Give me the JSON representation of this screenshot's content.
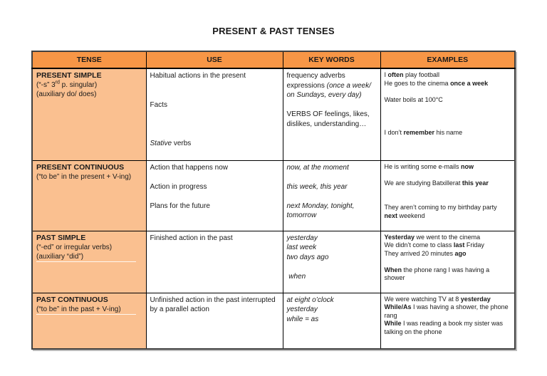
{
  "page": {
    "title": "PRESENT & PAST TENSES"
  },
  "table": {
    "headers": [
      "TENSE",
      "USE",
      "KEY WORDS",
      "EXAMPLES"
    ],
    "colors": {
      "header_bg": "#F79646",
      "tense_bg": "#FAC090",
      "grid_border": "#000000",
      "outer_border": "#404040"
    },
    "rows": [
      {
        "tense": [
          {
            "runs": [
              {
                "t": "PRESENT SIMPLE",
                "b": true
              }
            ]
          },
          {
            "runs": [
              {
                "t": "(“-s” 3"
              },
              {
                "t": "rd",
                "sup": true
              },
              {
                "t": " p. singular)"
              }
            ]
          },
          {
            "runs": [
              {
                "t": "(auxiliary do/ does)"
              }
            ]
          }
        ],
        "use": [
          {
            "runs": [
              {
                "t": "Habitual actions in the present"
              }
            ]
          },
          {
            "runs": []
          },
          {
            "runs": []
          },
          {
            "runs": [
              {
                "t": "Facts"
              }
            ]
          },
          {
            "runs": []
          },
          {
            "runs": []
          },
          {
            "runs": []
          },
          {
            "runs": [
              {
                "t": "Stative",
                "i": true
              },
              {
                "t": " verbs"
              }
            ]
          }
        ],
        "key_words": [
          {
            "runs": [
              {
                "t": "frequency adverbs expressions "
              },
              {
                "t": "(once a week/ on Sundays, every day)",
                "i": true
              }
            ]
          },
          {
            "runs": []
          },
          {
            "runs": [
              {
                "t": "VERBS OF feelings, likes, dislikes, understanding…"
              }
            ]
          }
        ],
        "examples": [
          {
            "runs": [
              {
                "t": "I "
              },
              {
                "t": "often",
                "b": true
              },
              {
                "t": " play football"
              }
            ]
          },
          {
            "runs": [
              {
                "t": "He goes to the cinema "
              },
              {
                "t": "once a week",
                "b": true
              }
            ]
          },
          {
            "runs": []
          },
          {
            "runs": [
              {
                "t": "Water boils at 100°C"
              }
            ]
          },
          {
            "runs": []
          },
          {
            "runs": []
          },
          {
            "runs": []
          },
          {
            "runs": [
              {
                "t": "I don’t "
              },
              {
                "t": "remember",
                "b": true
              },
              {
                "t": " his name"
              }
            ]
          }
        ]
      },
      {
        "tense": [
          {
            "runs": [
              {
                "t": "PRESENT CONTINUOUS",
                "b": true
              }
            ]
          },
          {
            "runs": [
              {
                "t": "(“to be” in the present + V-ing)"
              }
            ]
          }
        ],
        "use": [
          {
            "runs": [
              {
                "t": "Action that happens now"
              }
            ]
          },
          {
            "runs": []
          },
          {
            "runs": [
              {
                "t": "Action in progress"
              }
            ]
          },
          {
            "runs": []
          },
          {
            "runs": [
              {
                "t": "Plans for the future"
              }
            ]
          }
        ],
        "key_words": [
          {
            "runs": [
              {
                "t": "now, at the moment",
                "i": true
              }
            ]
          },
          {
            "runs": []
          },
          {
            "runs": [
              {
                "t": "this week, this year",
                "i": true
              }
            ]
          },
          {
            "runs": []
          },
          {
            "runs": [
              {
                "t": "next Monday, tonight, tomorrow",
                "i": true
              }
            ]
          }
        ],
        "examples": [
          {
            "runs": [
              {
                "t": "He is writing some e-mails "
              },
              {
                "t": "now",
                "b": true
              }
            ]
          },
          {
            "runs": []
          },
          {
            "runs": [
              {
                "t": "We are studying Batxillerat "
              },
              {
                "t": "this year",
                "b": true
              }
            ]
          },
          {
            "runs": []
          },
          {
            "runs": []
          },
          {
            "runs": [
              {
                "t": "They aren’t coming to my birthday party "
              },
              {
                "t": "next",
                "b": true
              },
              {
                "t": " weekend"
              }
            ]
          }
        ]
      },
      {
        "tense": [
          {
            "runs": [
              {
                "t": "PAST SIMPLE",
                "b": true
              }
            ]
          },
          {
            "runs": [
              {
                "t": "(“-ed” or irregular verbs)"
              }
            ]
          },
          {
            "runs": [
              {
                "t": "(auxiliary “did”)"
              }
            ],
            "ul": true
          }
        ],
        "use": [
          {
            "runs": [
              {
                "t": "Finished action in the past"
              }
            ]
          }
        ],
        "key_words": [
          {
            "runs": [
              {
                "t": "yesterday",
                "i": true
              }
            ]
          },
          {
            "runs": [
              {
                "t": "last week",
                "i": true
              }
            ]
          },
          {
            "runs": [
              {
                "t": "two days ago",
                "i": true
              }
            ]
          },
          {
            "runs": []
          },
          {
            "runs": [
              {
                "t": " when",
                "i": true
              }
            ]
          }
        ],
        "examples": [
          {
            "runs": [
              {
                "t": "Yesterday",
                "b": true
              },
              {
                "t": " we went to the cinema"
              }
            ]
          },
          {
            "runs": [
              {
                "t": "We didn’t come to class "
              },
              {
                "t": "last",
                "b": true
              },
              {
                "t": " Friday"
              }
            ]
          },
          {
            "runs": [
              {
                "t": "They arrived 20 minutes "
              },
              {
                "t": "ago",
                "b": true
              }
            ]
          },
          {
            "runs": []
          },
          {
            "runs": [
              {
                "t": "When",
                "b": true
              },
              {
                "t": " the phone rang I was having a shower"
              }
            ]
          }
        ]
      },
      {
        "tense": [
          {
            "runs": [
              {
                "t": "PAST CONTINUOUS",
                "b": true
              }
            ]
          },
          {
            "runs": [
              {
                "t": "(“to be” in the past + V-ing)"
              }
            ],
            "ul": true
          }
        ],
        "use": [
          {
            "runs": [
              {
                "t": "Unfinished action in the past interrupted by a parallel action"
              }
            ]
          }
        ],
        "key_words": [
          {
            "runs": [
              {
                "t": "at eight o’clock",
                "i": true
              }
            ]
          },
          {
            "runs": [
              {
                "t": "yesterday",
                "i": true
              }
            ]
          },
          {
            "runs": [
              {
                "t": "while = as",
                "i": true
              }
            ]
          }
        ],
        "examples": [
          {
            "runs": [
              {
                "t": "We were watching TV at 8 "
              },
              {
                "t": "yesterday",
                "b": true
              }
            ]
          },
          {
            "runs": [
              {
                "t": "While/As",
                "b": true
              },
              {
                "t": " I was having a shower, the phone rang"
              }
            ]
          },
          {
            "runs": [
              {
                "t": "While",
                "b": true
              },
              {
                "t": " I was reading a book my sister was talking on the phone"
              }
            ]
          }
        ]
      }
    ]
  }
}
